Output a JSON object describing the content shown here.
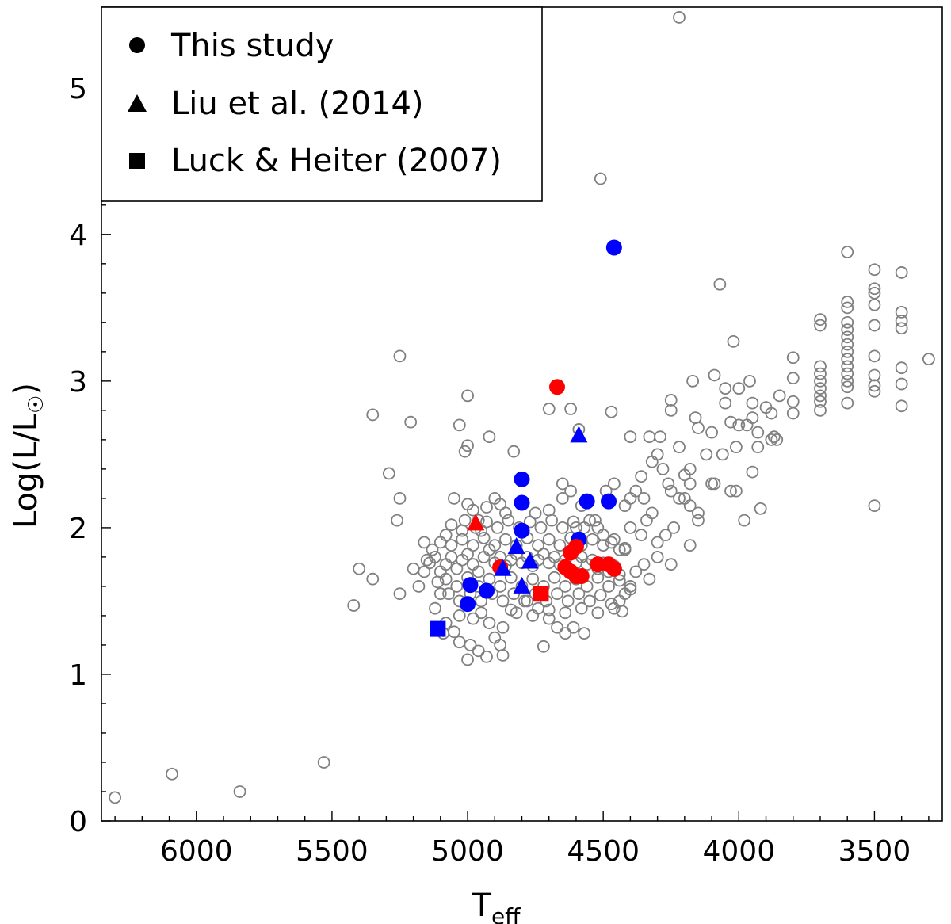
{
  "chart_data": {
    "type": "scatter",
    "xlabel": "T",
    "xlabel_sub": "eff",
    "ylabel": "Log(L/L",
    "ylabel_sym": "☉",
    "ylabel_close": ")",
    "xlim": [
      6350,
      3250
    ],
    "ylim": [
      0,
      5.55
    ],
    "x_ticks": [
      6000,
      5500,
      5000,
      4500,
      4000,
      3500
    ],
    "y_ticks": [
      0,
      1,
      2,
      3,
      4,
      5
    ],
    "x_minor_step": 100,
    "y_minor_step": 0.2,
    "legend_position": "top-left",
    "legend": [
      {
        "label": "This study",
        "marker": "circle"
      },
      {
        "label": "Liu et al. (2014)",
        "marker": "triangle"
      },
      {
        "label": "Luck & Heiter (2007)",
        "marker": "square"
      }
    ],
    "colors": {
      "background": "#808080",
      "blue": "#0000ff",
      "red": "#ff0000",
      "legend": "#000000"
    },
    "background_points": [
      [
        6300,
        0.16
      ],
      [
        6090,
        0.32
      ],
      [
        5840,
        0.2
      ],
      [
        5530,
        0.4
      ],
      [
        4220,
        5.48
      ],
      [
        4510,
        4.38
      ],
      [
        4070,
        3.66
      ],
      [
        4020,
        3.27
      ],
      [
        5250,
        3.17
      ],
      [
        5350,
        2.77
      ],
      [
        5210,
        2.72
      ],
      [
        5000,
        2.9
      ],
      [
        5030,
        2.7
      ],
      [
        4920,
        2.62
      ],
      [
        4700,
        2.81
      ],
      [
        4830,
        2.52
      ],
      [
        5010,
        2.52
      ],
      [
        5000,
        2.56
      ],
      [
        5290,
        2.37
      ],
      [
        5250,
        2.2
      ],
      [
        5260,
        2.05
      ],
      [
        4590,
        2.67
      ],
      [
        4620,
        2.81
      ],
      [
        4470,
        2.79
      ],
      [
        4400,
        2.62
      ],
      [
        4360,
        2.35
      ],
      [
        3600,
        3.88
      ],
      [
        3500,
        3.76
      ],
      [
        3400,
        3.74
      ],
      [
        3600,
        3.54
      ],
      [
        3600,
        3.5
      ],
      [
        3500,
        3.63
      ],
      [
        3500,
        3.6
      ],
      [
        3500,
        3.52
      ],
      [
        3400,
        3.47
      ],
      [
        3400,
        3.41
      ],
      [
        3400,
        3.36
      ],
      [
        3700,
        3.42
      ],
      [
        3700,
        3.38
      ],
      [
        3600,
        3.4
      ],
      [
        3600,
        3.35
      ],
      [
        3600,
        3.3
      ],
      [
        3500,
        3.38
      ],
      [
        3600,
        3.25
      ],
      [
        3600,
        3.2
      ],
      [
        3600,
        3.15
      ],
      [
        3600,
        3.1
      ],
      [
        3600,
        3.05
      ],
      [
        3600,
        3.0
      ],
      [
        3600,
        2.96
      ],
      [
        3700,
        3.1
      ],
      [
        3700,
        3.05
      ],
      [
        3700,
        3.0
      ],
      [
        3700,
        2.95
      ],
      [
        3700,
        2.9
      ],
      [
        3700,
        2.86
      ],
      [
        3700,
        2.8
      ],
      [
        3600,
        2.85
      ],
      [
        3500,
        3.17
      ],
      [
        3500,
        3.04
      ],
      [
        3500,
        2.97
      ],
      [
        3500,
        2.93
      ],
      [
        3400,
        3.09
      ],
      [
        3400,
        2.98
      ],
      [
        3400,
        2.83
      ],
      [
        3300,
        3.15
      ],
      [
        3500,
        2.15
      ],
      [
        3800,
        3.16
      ],
      [
        3800,
        3.02
      ],
      [
        3800,
        2.86
      ],
      [
        3800,
        2.78
      ],
      [
        3850,
        2.9
      ],
      [
        3880,
        2.78
      ],
      [
        3900,
        2.82
      ],
      [
        3870,
        2.62
      ],
      [
        3860,
        2.6
      ],
      [
        3880,
        2.6
      ],
      [
        3930,
        2.65
      ],
      [
        3930,
        2.55
      ],
      [
        3950,
        2.75
      ],
      [
        3950,
        2.85
      ],
      [
        3960,
        3.0
      ],
      [
        3970,
        2.7
      ],
      [
        4000,
        2.7
      ],
      [
        4010,
        2.55
      ],
      [
        4000,
        2.95
      ],
      [
        4050,
        2.85
      ],
      [
        4050,
        2.95
      ],
      [
        4030,
        2.72
      ],
      [
        4090,
        3.04
      ],
      [
        4100,
        2.65
      ],
      [
        4060,
        2.5
      ],
      [
        4100,
        2.3
      ],
      [
        4120,
        2.5
      ],
      [
        4150,
        2.68
      ],
      [
        4160,
        2.75
      ],
      [
        4170,
        3.0
      ],
      [
        4180,
        2.4
      ],
      [
        4200,
        2.36
      ],
      [
        4220,
        2.55
      ],
      [
        4250,
        2.87
      ],
      [
        4250,
        2.8
      ],
      [
        4260,
        2.3
      ],
      [
        4290,
        2.62
      ],
      [
        4330,
        2.62
      ],
      [
        3950,
        2.38
      ],
      [
        3920,
        2.13
      ],
      [
        3980,
        2.05
      ],
      [
        4010,
        2.25
      ],
      [
        4030,
        2.25
      ],
      [
        4090,
        2.3
      ],
      [
        4150,
        2.05
      ],
      [
        4180,
        1.88
      ],
      [
        4300,
        2.5
      ],
      [
        4280,
        2.4
      ],
      [
        4320,
        2.45
      ],
      [
        4250,
        2.25
      ],
      [
        4220,
        2.2
      ],
      [
        4180,
        2.15
      ],
      [
        4150,
        2.1
      ],
      [
        4240,
        2.0
      ],
      [
        4270,
        1.95
      ],
      [
        4300,
        1.9
      ],
      [
        4320,
        2.1
      ],
      [
        4350,
        2.2
      ],
      [
        4380,
        2.25
      ],
      [
        4400,
        2.2
      ],
      [
        4420,
        2.15
      ],
      [
        4340,
        2.05
      ],
      [
        4360,
        1.95
      ],
      [
        4400,
        2.0
      ],
      [
        4420,
        1.85
      ],
      [
        4300,
        1.8
      ],
      [
        4250,
        1.75
      ],
      [
        4330,
        1.65
      ],
      [
        4380,
        1.7
      ],
      [
        4400,
        1.6
      ],
      [
        4420,
        1.55
      ],
      [
        4440,
        1.5
      ],
      [
        4460,
        1.45
      ],
      [
        4430,
        1.43
      ],
      [
        4350,
        1.75
      ],
      [
        4200,
        2.2
      ],
      [
        4180,
        2.3
      ],
      [
        5400,
        1.72
      ],
      [
        5420,
        1.47
      ],
      [
        5350,
        1.65
      ],
      [
        5250,
        1.55
      ],
      [
        5200,
        1.72
      ],
      [
        5180,
        1.6
      ],
      [
        5150,
        1.78
      ],
      [
        5130,
        1.85
      ],
      [
        5160,
        1.9
      ],
      [
        5120,
        1.45
      ],
      [
        5100,
        1.55
      ],
      [
        5080,
        1.35
      ],
      [
        5050,
        1.29
      ],
      [
        5030,
        1.22
      ],
      [
        5000,
        1.1
      ],
      [
        4990,
        1.2
      ],
      [
        4960,
        1.16
      ],
      [
        4930,
        1.12
      ],
      [
        4900,
        1.25
      ],
      [
        4880,
        1.2
      ],
      [
        4870,
        1.13
      ],
      [
        4840,
        1.44
      ],
      [
        4780,
        1.5
      ],
      [
        4740,
        1.45
      ],
      [
        4720,
        1.19
      ],
      [
        4640,
        1.28
      ],
      [
        4610,
        1.32
      ],
      [
        4570,
        1.28
      ],
      [
        4670,
        1.32
      ],
      [
        4700,
        1.38
      ],
      [
        5050,
        2.2
      ],
      [
        5000,
        2.16
      ],
      [
        4980,
        2.12
      ],
      [
        4960,
        2.05
      ],
      [
        4930,
        2.14
      ],
      [
        4900,
        2.2
      ],
      [
        4880,
        2.16
      ],
      [
        4860,
        2.1
      ],
      [
        4950,
        1.98
      ],
      [
        5020,
        1.98
      ],
      [
        5060,
        2.02
      ],
      [
        5080,
        1.95
      ],
      [
        5100,
        1.9
      ],
      [
        4750,
        2.1
      ],
      [
        4700,
        2.12
      ],
      [
        4650,
        2.2
      ],
      [
        4620,
        2.25
      ],
      [
        4580,
        2.15
      ],
      [
        4550,
        2.05
      ],
      [
        4520,
        2.0
      ],
      [
        4490,
        2.25
      ],
      [
        4460,
        2.3
      ],
      [
        4650,
        2.3
      ],
      [
        4600,
        2.0
      ],
      [
        4500,
        1.95
      ],
      [
        4470,
        1.9
      ],
      [
        4440,
        1.85
      ],
      [
        5100,
        1.7
      ],
      [
        5080,
        1.75
      ],
      [
        5060,
        1.8
      ],
      [
        5040,
        1.72
      ],
      [
        5020,
        1.78
      ],
      [
        5000,
        1.82
      ],
      [
        4980,
        1.75
      ],
      [
        4960,
        1.7
      ],
      [
        4940,
        1.8
      ],
      [
        4920,
        1.85
      ],
      [
        4900,
        1.76
      ],
      [
        4880,
        1.8
      ],
      [
        4860,
        1.74
      ],
      [
        4840,
        1.78
      ],
      [
        4820,
        1.82
      ],
      [
        4800,
        1.76
      ],
      [
        4780,
        1.8
      ],
      [
        4760,
        1.74
      ],
      [
        4740,
        1.78
      ],
      [
        4720,
        1.82
      ],
      [
        4700,
        1.76
      ],
      [
        4680,
        1.8
      ],
      [
        4660,
        1.75
      ],
      [
        4640,
        1.78
      ],
      [
        4620,
        1.82
      ],
      [
        4600,
        1.76
      ],
      [
        4580,
        1.8
      ],
      [
        4560,
        1.75
      ],
      [
        4540,
        1.78
      ],
      [
        4520,
        1.72
      ],
      [
        4500,
        1.76
      ],
      [
        4480,
        1.7
      ],
      [
        4460,
        1.74
      ],
      [
        4440,
        1.68
      ],
      [
        5080,
        1.65
      ],
      [
        5040,
        1.6
      ],
      [
        5000,
        1.66
      ],
      [
        4960,
        1.6
      ],
      [
        4920,
        1.65
      ],
      [
        4880,
        1.6
      ],
      [
        4840,
        1.66
      ],
      [
        4800,
        1.6
      ],
      [
        4760,
        1.65
      ],
      [
        4720,
        1.6
      ],
      [
        4680,
        1.66
      ],
      [
        4640,
        1.6
      ],
      [
        4600,
        1.65
      ],
      [
        4560,
        1.6
      ],
      [
        4520,
        1.66
      ],
      [
        4480,
        1.6
      ],
      [
        4440,
        1.64
      ],
      [
        4400,
        1.58
      ],
      [
        5060,
        1.88
      ],
      [
        5020,
        1.92
      ],
      [
        4980,
        1.88
      ],
      [
        4940,
        1.93
      ],
      [
        4900,
        1.88
      ],
      [
        4860,
        1.92
      ],
      [
        4820,
        1.88
      ],
      [
        4780,
        1.93
      ],
      [
        4740,
        1.88
      ],
      [
        4700,
        1.92
      ],
      [
        4660,
        1.88
      ],
      [
        4620,
        1.93
      ],
      [
        4580,
        1.88
      ],
      [
        4540,
        1.92
      ],
      [
        4500,
        1.88
      ],
      [
        4460,
        1.92
      ],
      [
        4420,
        1.86
      ],
      [
        5070,
        1.55
      ],
      [
        5030,
        1.5
      ],
      [
        4990,
        1.55
      ],
      [
        4950,
        1.5
      ],
      [
        4910,
        1.55
      ],
      [
        4870,
        1.5
      ],
      [
        4830,
        1.55
      ],
      [
        4790,
        1.5
      ],
      [
        4750,
        1.55
      ],
      [
        4710,
        1.5
      ],
      [
        4670,
        1.55
      ],
      [
        4630,
        1.5
      ],
      [
        4590,
        1.55
      ],
      [
        4550,
        1.5
      ],
      [
        4510,
        1.54
      ],
      [
        4470,
        1.48
      ],
      [
        5010,
        2.05
      ],
      [
        4970,
        2.0
      ],
      [
        4930,
        2.04
      ],
      [
        4890,
        2.0
      ],
      [
        4850,
        2.05
      ],
      [
        4810,
        2.0
      ],
      [
        4770,
        2.04
      ],
      [
        4730,
        2.0
      ],
      [
        4690,
        2.05
      ],
      [
        4650,
        2.0
      ],
      [
        4610,
        2.04
      ],
      [
        4570,
        2.0
      ],
      [
        4530,
        2.05
      ],
      [
        4820,
        1.42
      ],
      [
        4760,
        1.4
      ],
      [
        4700,
        1.44
      ],
      [
        4640,
        1.42
      ],
      [
        4580,
        1.45
      ],
      [
        4520,
        1.42
      ],
      [
        5120,
        1.8
      ],
      [
        5140,
        1.76
      ],
      [
        5160,
        1.7
      ],
      [
        5110,
        1.63
      ],
      [
        5090,
        1.28
      ],
      [
        4950,
        1.42
      ],
      [
        4980,
        1.38
      ],
      [
        4920,
        1.35
      ],
      [
        4870,
        1.32
      ],
      [
        5030,
        1.4
      ]
    ],
    "series": [
      {
        "marker": "circle",
        "color": "blue",
        "points": [
          [
            4460,
            3.91
          ],
          [
            4800,
            2.33
          ],
          [
            4800,
            2.17
          ],
          [
            4560,
            2.18
          ],
          [
            4480,
            2.18
          ],
          [
            4800,
            1.98
          ],
          [
            4590,
            1.92
          ],
          [
            4990,
            1.61
          ],
          [
            4930,
            1.57
          ],
          [
            5000,
            1.48
          ]
        ]
      },
      {
        "marker": "circle",
        "color": "red",
        "points": [
          [
            4670,
            2.96
          ],
          [
            4880,
            1.73
          ],
          [
            4600,
            1.87
          ],
          [
            4620,
            1.83
          ],
          [
            4640,
            1.73
          ],
          [
            4620,
            1.7
          ],
          [
            4600,
            1.67
          ],
          [
            4580,
            1.67
          ],
          [
            4520,
            1.75
          ],
          [
            4480,
            1.75
          ],
          [
            4460,
            1.72
          ]
        ]
      },
      {
        "marker": "triangle",
        "color": "blue",
        "points": [
          [
            4590,
            2.63
          ],
          [
            4820,
            1.87
          ],
          [
            4770,
            1.77
          ],
          [
            4870,
            1.72
          ],
          [
            4800,
            1.6
          ]
        ]
      },
      {
        "marker": "triangle",
        "color": "red",
        "points": [
          [
            4970,
            2.03
          ]
        ]
      },
      {
        "marker": "square",
        "color": "blue",
        "points": [
          [
            5110,
            1.31
          ]
        ]
      },
      {
        "marker": "square",
        "color": "red",
        "points": [
          [
            4730,
            1.55
          ]
        ]
      }
    ]
  }
}
